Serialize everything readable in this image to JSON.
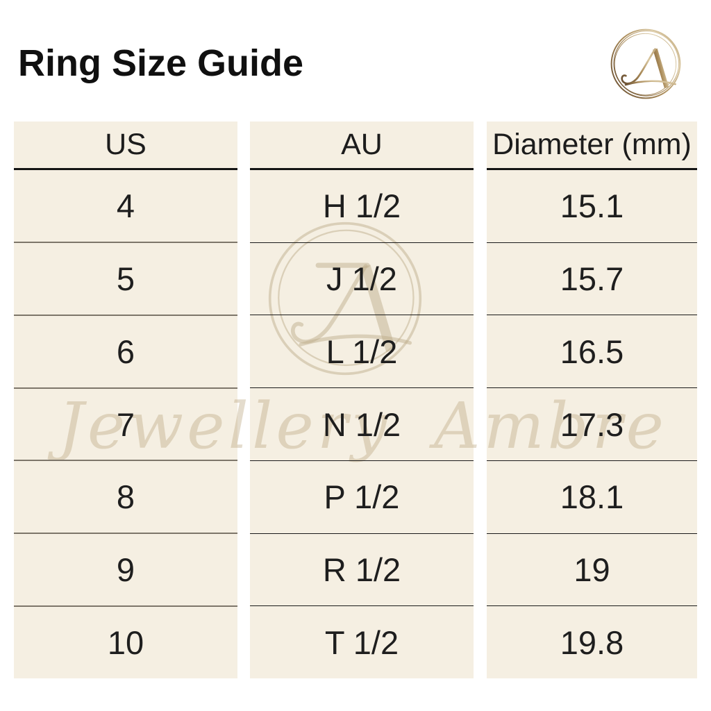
{
  "page": {
    "title": "Ring Size Guide"
  },
  "logo": {
    "monogram": "JA"
  },
  "watermark": {
    "monogram": "A",
    "script_text": "Jewellery Ambre"
  },
  "table": {
    "columns": [
      {
        "header": "US",
        "values": [
          "4",
          "5",
          "6",
          "7",
          "8",
          "9",
          "10"
        ]
      },
      {
        "header": "AU",
        "values": [
          "H 1/2",
          "J 1/2",
          "L 1/2",
          "N 1/2",
          "P 1/2",
          "R 1/2",
          "T 1/2"
        ]
      },
      {
        "header": "Diameter (mm)",
        "values": [
          "15.1",
          "15.7",
          "16.5",
          "17.3",
          "18.1",
          "19",
          "19.8"
        ]
      }
    ]
  },
  "colors": {
    "background": "#ffffff",
    "cell_background": "#f5efe2",
    "text": "#1e1e1e",
    "header_rule": "#141414",
    "row_rule_us": "#7d766a",
    "row_rule_dark": "#191919",
    "gold_dark": "#6d5335",
    "gold_mid": "#a98a58",
    "gold_light": "#d9c7a1",
    "watermark_tan": "#bca882"
  }
}
